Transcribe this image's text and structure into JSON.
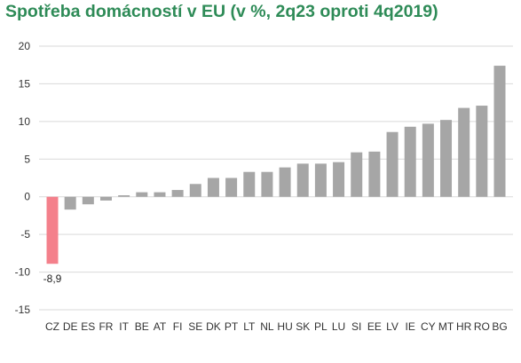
{
  "chart_data": {
    "type": "bar",
    "title": "Spotřeba domácností v EU (v %, 2q23 oproti 4q2019)",
    "categories": [
      "CZ",
      "DE",
      "ES",
      "FR",
      "IT",
      "BE",
      "AT",
      "FI",
      "SE",
      "DK",
      "PT",
      "LT",
      "NL",
      "HU",
      "SK",
      "PL",
      "LU",
      "SI",
      "EE",
      "LV",
      "IE",
      "CY",
      "MT",
      "HR",
      "RO",
      "BG"
    ],
    "values": [
      -8.9,
      -1.7,
      -1.0,
      -0.5,
      0.2,
      0.6,
      0.6,
      0.9,
      1.7,
      2.5,
      2.5,
      3.3,
      3.3,
      3.9,
      4.4,
      4.4,
      4.6,
      5.9,
      6.0,
      8.6,
      9.3,
      9.7,
      10.2,
      11.8,
      12.1,
      17.4
    ],
    "ylim": [
      -15,
      20
    ],
    "yticks": [
      "20",
      "15",
      "10",
      "5",
      "0",
      "-5",
      "-10",
      "-15"
    ],
    "ytick_values": [
      20,
      15,
      10,
      5,
      0,
      -5,
      -10,
      -15
    ],
    "highlight_category": "CZ",
    "highlight_label": "-8,9",
    "grid": true,
    "legend": "none",
    "colors": {
      "bar": "#a6a6a6",
      "highlight": "#f4808b",
      "grid": "#d9d9d9",
      "title": "#2e8b57"
    }
  }
}
